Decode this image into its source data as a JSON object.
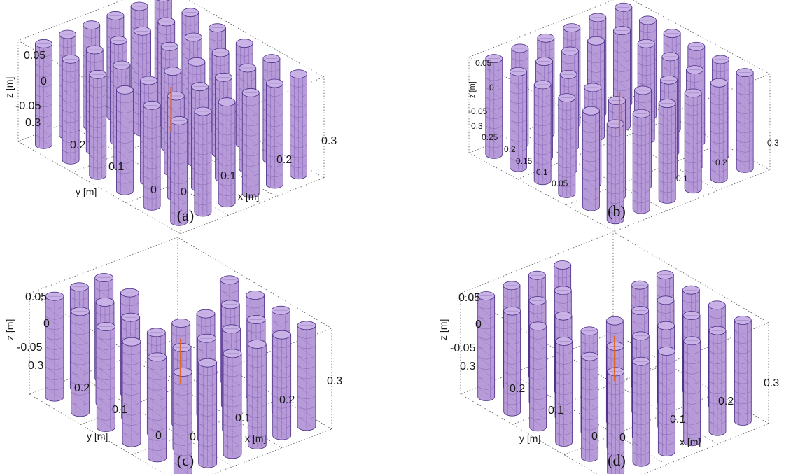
{
  "colors": {
    "cylinder_fill": "#b79ad8",
    "cylinder_top": "#c9b2e6",
    "mesh": "#6a4aa4",
    "outline": "#4b2f86",
    "source": "#e0662a",
    "box": "#555555",
    "text": "#1a1a1a"
  },
  "panels": [
    {
      "id": "a",
      "caption": "(a)",
      "z_label": "z [m]",
      "y_label": "y [m]",
      "x_label": "x [m]",
      "z_ticks": [
        "0.05",
        "0",
        "-0.05"
      ],
      "y_ticks": [
        "0.3",
        "0.2",
        "0.1",
        "0"
      ],
      "x_ticks": [
        "0",
        "0.1",
        "0.2",
        "0.3"
      ],
      "grid": {
        "cols": 6,
        "rows": 6
      },
      "missing_cells": [
        [
          2,
          3
        ]
      ]
    },
    {
      "id": "b",
      "caption": "(b)",
      "z_label": "z [m]",
      "y_label": "",
      "x_label": "",
      "z_ticks": [
        "0.05",
        "0",
        "-0.05"
      ],
      "y_ticks": [
        "0.3",
        "0.25",
        "0.2",
        "0.15",
        "0.1",
        "0.05"
      ],
      "x_ticks": [
        "0.1",
        "0.2",
        "0.3"
      ],
      "grid": {
        "cols": 6,
        "rows": 6
      },
      "missing_cells": [
        [
          2,
          2
        ],
        [
          2,
          3
        ],
        [
          3,
          2
        ],
        [
          3,
          3
        ]
      ]
    },
    {
      "id": "c",
      "caption": "(c)",
      "z_label": "z [m]",
      "y_label": "y [m]",
      "x_label": "x [m]",
      "z_ticks": [
        "0.05",
        "0",
        "-0.05"
      ],
      "y_ticks": [
        "0.3",
        "0.2",
        "0.1",
        "0"
      ],
      "x_ticks": [
        "0",
        "0.1",
        "0.2",
        "0.3"
      ],
      "grid": {
        "cols": 6,
        "rows": 6
      },
      "missing_cells": [
        [
          2,
          3
        ],
        [
          3,
          3
        ],
        [
          4,
          3
        ],
        [
          3,
          4
        ],
        [
          4,
          4
        ],
        [
          5,
          4
        ],
        [
          4,
          5
        ],
        [
          5,
          5
        ],
        [
          3,
          5
        ]
      ]
    },
    {
      "id": "d",
      "caption": "(d)",
      "z_label": "z [m]",
      "y_label": "y [m]",
      "x_label": "x [m]",
      "z_ticks": [
        "0.05",
        "0",
        "-0.05"
      ],
      "y_ticks": [
        "0.3",
        "0.2",
        "0.1",
        "0"
      ],
      "x_ticks": [
        "0",
        "0.1",
        "0.2",
        "0.3"
      ],
      "grid": {
        "cols": 6,
        "rows": 6
      },
      "missing_cells": [
        [
          2,
          3
        ],
        [
          3,
          3
        ],
        [
          3,
          4
        ],
        [
          4,
          4
        ],
        [
          4,
          5
        ],
        [
          5,
          5
        ],
        [
          5,
          4
        ]
      ]
    }
  ]
}
